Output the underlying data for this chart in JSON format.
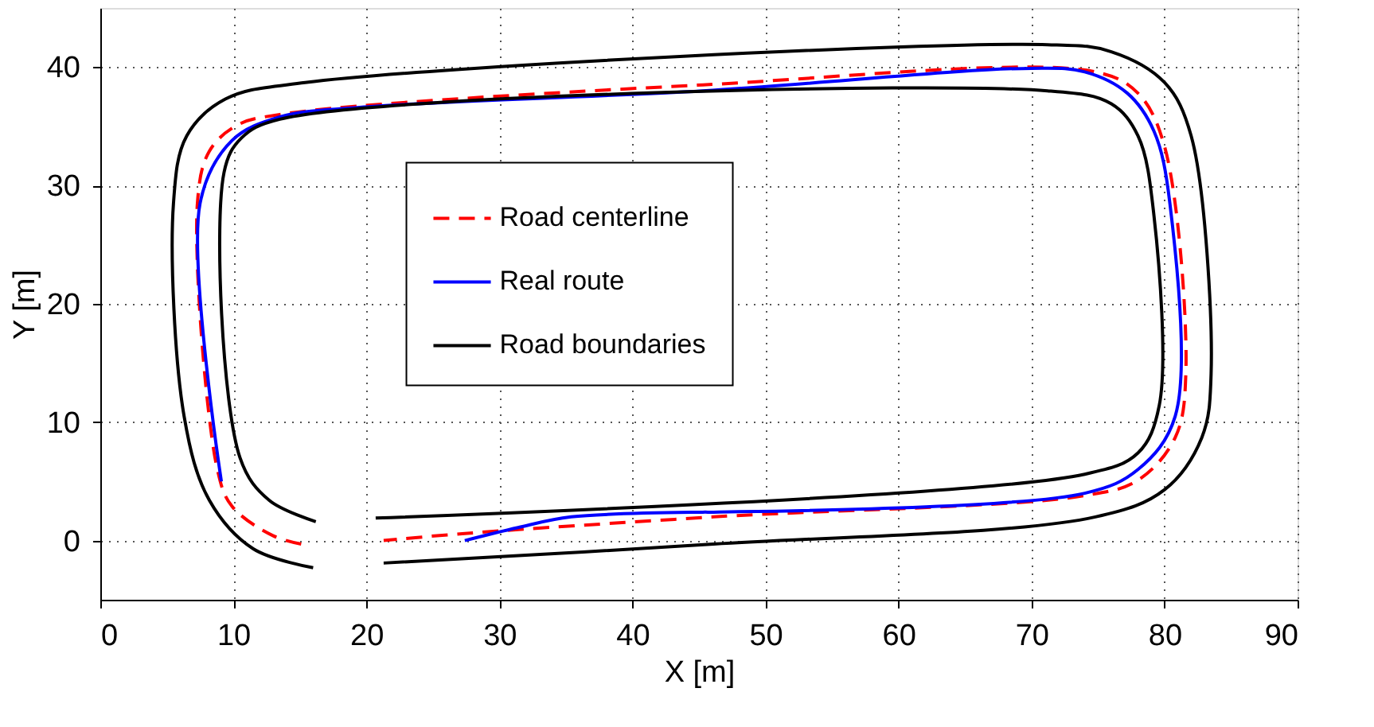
{
  "chart_data": {
    "type": "line",
    "xlabel": "X [m]",
    "ylabel": "Y [m]",
    "xlim": [
      0,
      90
    ],
    "ylim": [
      -5,
      45
    ],
    "xticks": [
      0,
      10,
      20,
      30,
      40,
      50,
      60,
      70,
      80,
      90
    ],
    "yticks": [
      0,
      10,
      20,
      30,
      40
    ],
    "grid": true,
    "legend": "top",
    "series": [
      {
        "name": "Road centerline",
        "color": "#ff0000",
        "line_style": "dashed",
        "x": [
          15.1,
          13.0,
          9.9,
          8.8,
          7.3,
          8.2,
          10.3,
          13.5,
          45.3,
          74.8,
          78,
          80,
          81.6,
          80.8,
          78,
          74,
          46.1,
          27.4,
          21.3
        ],
        "values": [
          -0.3,
          0.4,
          2.9,
          6.0,
          28.5,
          32.9,
          35.1,
          36.0,
          38.5,
          39.6,
          37.8,
          33.3,
          14.1,
          8.7,
          5.1,
          3.8,
          2.0,
          0.6,
          0.0
        ]
      },
      {
        "name": "Real route",
        "color": "#0000ff",
        "line_style": "solid",
        "x": [
          27.4,
          31.4,
          35.4,
          45.3,
          46.1,
          74,
          78,
          80.8,
          80.4,
          79.2,
          77.2,
          74,
          70,
          45.3,
          19.5,
          13.5,
          9.9,
          7.5,
          9.1
        ],
        "values": [
          0.0,
          1.1,
          2.0,
          2.4,
          2.4,
          4.0,
          6.0,
          10.5,
          28.5,
          34.6,
          37.8,
          39.6,
          39.9,
          38.0,
          36.6,
          35.8,
          33.8,
          28.5,
          5.0
        ]
      },
      {
        "name": "Road boundaries",
        "color": "#000000",
        "line_style": "solid",
        "x": [
          16.0,
          11.5,
          8.2,
          6.3,
          5.5,
          6.5,
          9.4,
          15.4,
          71.2,
          76,
          80,
          82,
          83.5,
          82.8,
          80,
          74.8,
          46.1,
          21.3,
          null,
          16.2,
          12.7,
          10.5,
          9.3,
          10.6,
          13.5,
          71.2,
          76,
          78,
          79.2,
          79.6,
          78,
          74,
          20.7
        ],
        "values": [
          -2.3,
          -0.7,
          3.4,
          10.5,
          28.5,
          34.2,
          37.3,
          38.7,
          41.9,
          41.3,
          38.7,
          34.2,
          14.1,
          8.7,
          4.3,
          2.0,
          -0.3,
          -1.9,
          null,
          1.6,
          3.4,
          7.0,
          31.1,
          34.0,
          35.6,
          38.0,
          36.9,
          34.2,
          27.5,
          11.4,
          7.4,
          5.6,
          1.9
        ]
      }
    ]
  }
}
